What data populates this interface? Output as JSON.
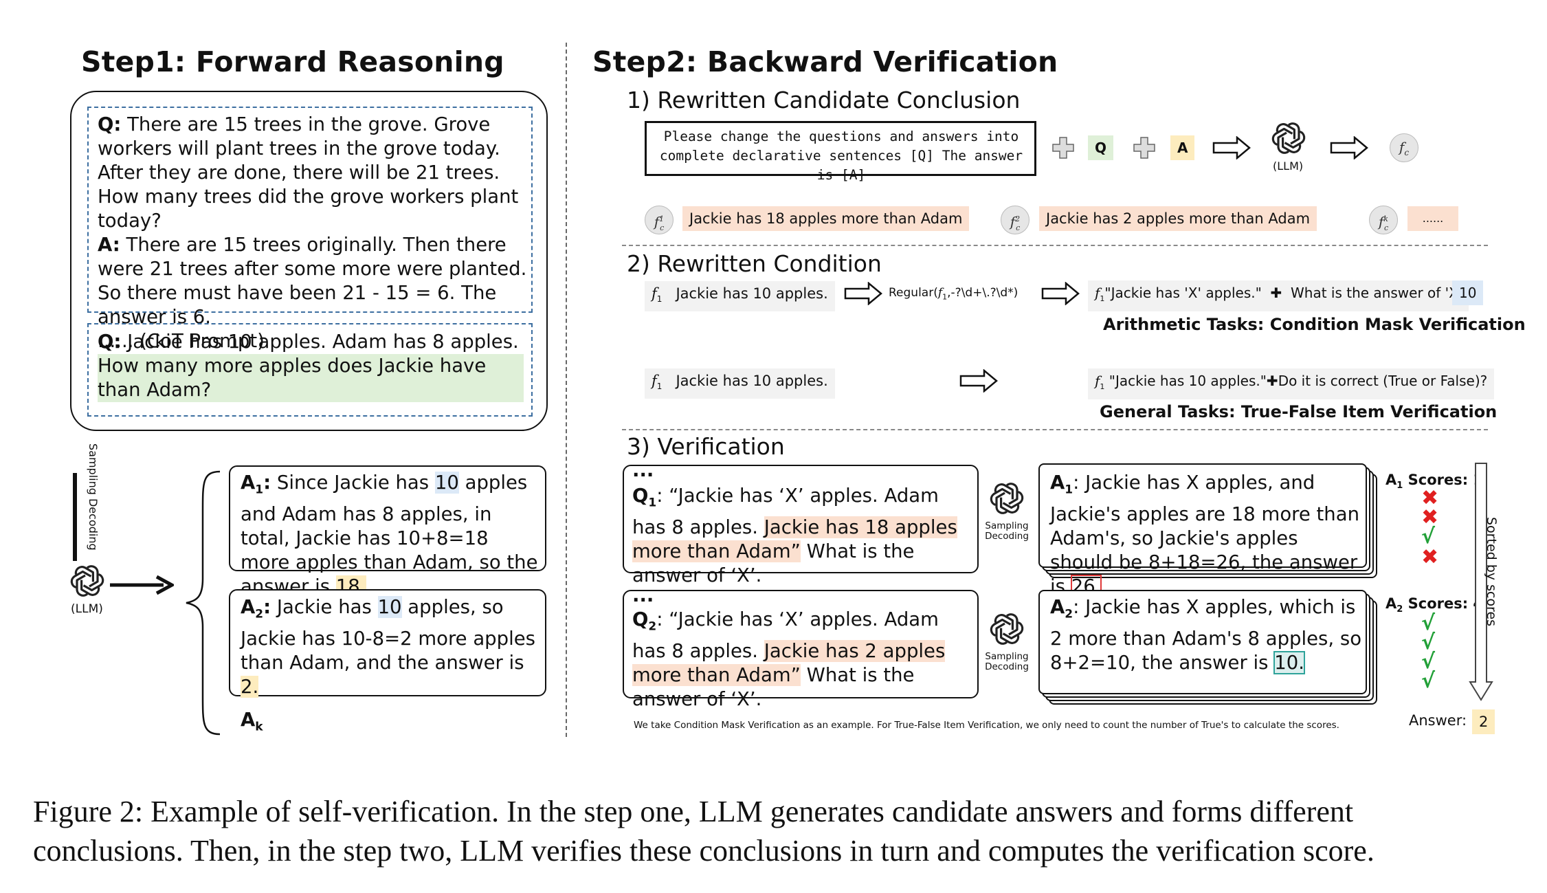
{
  "step1": {
    "title": "Step1: Forward Reasoning",
    "prompt_q_label": "Q:",
    "prompt_q_text": "There are 15 trees in the grove. Grove workers will plant trees in the grove today. After they are done, there will be 21 trees. How many trees did the grove workers plant today?",
    "prompt_a_label": "A:",
    "prompt_a_text": "There are 15 trees originally. Then there were 21 trees after some more were planted. So there must have been 21 - 15 = 6. The answer is 6.",
    "prompt_note": "...... (CoT Prompt)",
    "question_label": "Q:",
    "question_part1": "Jackie has 10 apples. Adam has 8 apples.",
    "question_part2": "How many more apples does Jackie have than Adam?",
    "sampling_label": "Sampling Decoding",
    "llm_label": "(LLM)",
    "answer1": {
      "label": "A",
      "sub": "1",
      "t1": "Since Jackie has ",
      "h1": "10",
      "t2": " apples and Adam has 8 apples, in total, Jackie has 10+8=18 more apples than Adam, so the answer is ",
      "h2": "18."
    },
    "answer2": {
      "label": "A",
      "sub": "2",
      "t1": "Jackie has ",
      "h1": "10",
      "t2": " apples, so Jackie has 10-8=2 more apples than Adam, and the answer is ",
      "h2": "2."
    },
    "answer_k": {
      "label": "A",
      "sub": "k"
    }
  },
  "step2": {
    "title": "Step2: Backward Verification",
    "sec1_title": "1) Rewritten Candidate Conclusion",
    "instruction_line1": "Please change the questions and answers into",
    "instruction_line2": "complete declarative sentences [Q] The answer is [A]",
    "q_tag": "Q",
    "a_tag": "A",
    "llm_label": "(LLM)",
    "fc_symbol": "f",
    "fc_sub": "c",
    "conclusions": [
      {
        "sup": "1",
        "text": "Jackie has 18 apples more than Adam"
      },
      {
        "sup": "2",
        "text": "Jackie has 2 apples more than Adam"
      },
      {
        "sup": "k",
        "text": "......"
      }
    ],
    "sec2_title": "2) Rewritten Condition",
    "f1_symbol": "f",
    "f1_sub": "1",
    "cond_text": "Jackie has 10 apples.",
    "regular_prefix": "Regular(",
    "regular_suffix": ",-?\\d+\\.?\\d*)",
    "arith_masked": "\"Jackie has 'X' apples.\"",
    "arith_question": "What is the answer of 'X'",
    "arith_answer": "10",
    "arith_label": "Arithmetic Tasks: Condition Mask Verification",
    "general_condition": "\"Jackie has 10 apples.\"",
    "general_question": "Do it is correct (True or False)?",
    "general_label": "General Tasks: True-False Item Verification",
    "sec3_title": "3) Verification",
    "ellipsis": "...",
    "v1": {
      "q_label": "Q",
      "q_sub": "1",
      "t1": ": “Jackie has ‘X’ apples. Adam has 8 apples. ",
      "h": "Jackie has 18 apples more than Adam”",
      "t2": " What is the answer of ‘X’."
    },
    "v2": {
      "q_label": "Q",
      "q_sub": "2",
      "t1": ": “Jackie has ‘X’ apples. Adam has 8 apples. ",
      "h": "Jackie has 2 apples more than Adam”",
      "t2": " What is the answer of ‘X’."
    },
    "sampling_label_1": "Sampling",
    "sampling_label_2": "Decoding",
    "r1": {
      "label": "A",
      "sub": "1",
      "text": ": Jackie has X apples, and Jackie's apples are 18 more than Adam's, so Jackie's apples should be 8+18=26, the answer is ",
      "ans": "26."
    },
    "r2": {
      "label": "A",
      "sub": "2",
      "text": ": Jackie has X apples, which is 2 more than Adam's 8 apples, so 8+2=10, the answer is ",
      "ans": "10."
    },
    "score1_label": "A",
    "score1_sub": "1",
    "score1_text": " Scores: 1",
    "score1_marks": [
      "✖",
      "✖",
      "√",
      "✖"
    ],
    "score2_label": "A",
    "score2_sub": "2",
    "score2_text": " Scores: 4",
    "score2_marks": [
      "√",
      "√",
      "√",
      "√"
    ],
    "sorted_label": "Sorted by scores",
    "answer_label": "Answer:",
    "answer_value": "2",
    "footnote": "We take Condition Mask Verification as an example. For True-False Item Verification, we only need to count the number of True's to calculate the scores."
  },
  "caption": {
    "line1": "Figure 2:  Example of self-verification.  In the step one, LLM generates candidate answers and forms different",
    "line2": "conclusions. Then, in the step two, LLM verifies these conclusions in turn and computes the verification score."
  },
  "colors": {
    "highlight_blue": "#dce9f7",
    "highlight_yellow": "#fdecbe",
    "highlight_green": "#dff0d8",
    "highlight_pink": "#fbe0d0",
    "cross_red": "#e02020",
    "check_green": "#22a038"
  }
}
